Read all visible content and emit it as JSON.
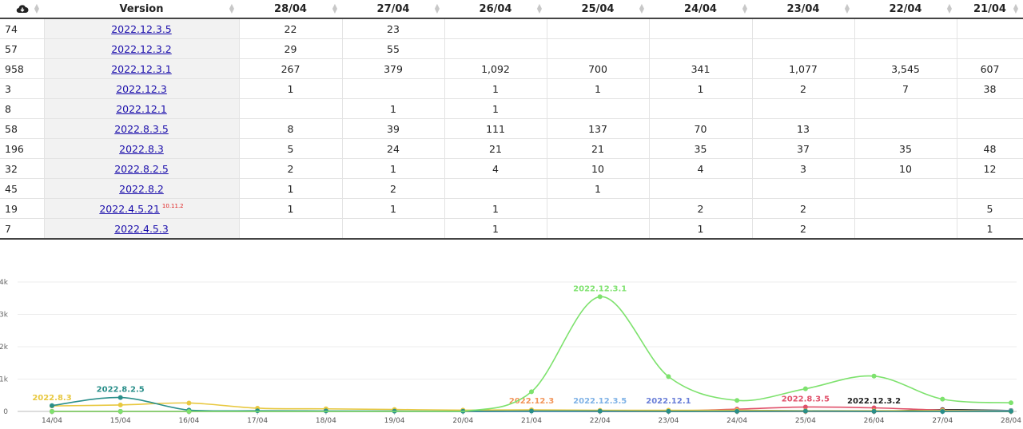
{
  "table": {
    "header_icon": "cloud-download-icon",
    "version_header": "Version",
    "date_headers": [
      "28/04",
      "27/04",
      "26/04",
      "25/04",
      "24/04",
      "23/04",
      "22/04",
      "21/04"
    ],
    "rows": [
      {
        "count": "74",
        "version": "2022.12.3.5",
        "badge": "",
        "cells": [
          "22",
          "23",
          "",
          "",
          "",
          "",
          "",
          ""
        ]
      },
      {
        "count": "57",
        "version": "2022.12.3.2",
        "badge": "",
        "cells": [
          "29",
          "55",
          "",
          "",
          "",
          "",
          "",
          ""
        ]
      },
      {
        "count": "958",
        "version": "2022.12.3.1",
        "badge": "",
        "cells": [
          "267",
          "379",
          "1,092",
          "700",
          "341",
          "1,077",
          "3,545",
          "607"
        ]
      },
      {
        "count": "3",
        "version": "2022.12.3",
        "badge": "",
        "cells": [
          "1",
          "",
          "1",
          "1",
          "1",
          "2",
          "7",
          "38"
        ]
      },
      {
        "count": "8",
        "version": "2022.12.1",
        "badge": "",
        "cells": [
          "",
          "1",
          "1",
          "",
          "",
          "",
          "",
          ""
        ]
      },
      {
        "count": "58",
        "version": "2022.8.3.5",
        "badge": "",
        "cells": [
          "8",
          "39",
          "111",
          "137",
          "70",
          "13",
          "",
          ""
        ]
      },
      {
        "count": "196",
        "version": "2022.8.3",
        "badge": "",
        "cells": [
          "5",
          "24",
          "21",
          "21",
          "35",
          "37",
          "35",
          "48"
        ]
      },
      {
        "count": "32",
        "version": "2022.8.2.5",
        "badge": "",
        "cells": [
          "2",
          "1",
          "4",
          "10",
          "4",
          "3",
          "10",
          "12"
        ]
      },
      {
        "count": "45",
        "version": "2022.8.2",
        "badge": "",
        "cells": [
          "1",
          "2",
          "",
          "1",
          "",
          "",
          "",
          ""
        ]
      },
      {
        "count": "19",
        "version": "2022.4.5.21",
        "badge": "10.11.2",
        "cells": [
          "1",
          "1",
          "1",
          "",
          "2",
          "2",
          "",
          "5"
        ]
      },
      {
        "count": "7",
        "version": "2022.4.5.3",
        "badge": "",
        "cells": [
          "",
          "",
          "1",
          "",
          "1",
          "2",
          "",
          "1"
        ]
      }
    ]
  },
  "chart_data": {
    "type": "line",
    "title": "",
    "xlabel": "",
    "ylabel": "",
    "x": [
      "14/04",
      "15/04",
      "16/04",
      "17/04",
      "18/04",
      "19/04",
      "20/04",
      "21/04",
      "22/04",
      "23/04",
      "24/04",
      "25/04",
      "26/04",
      "27/04",
      "28/04"
    ],
    "y_ticks": [
      "0",
      "1k",
      "2k",
      "3k",
      "4k"
    ],
    "ylim": [
      0,
      4000
    ],
    "grid": true,
    "series": [
      {
        "name": "2022.12.3.1",
        "color": "#7ee26e",
        "label_index": 8,
        "values": [
          0,
          0,
          0,
          0,
          0,
          0,
          0,
          607,
          3545,
          1077,
          341,
          700,
          1092,
          379,
          267
        ]
      },
      {
        "name": "2022.8.2.5",
        "color": "#2a8f8a",
        "label_index": 1,
        "values": [
          180,
          430,
          40,
          20,
          15,
          10,
          5,
          12,
          10,
          3,
          4,
          10,
          4,
          1,
          2
        ]
      },
      {
        "name": "2022.8.3",
        "color": "#e8c840",
        "label_index": 0,
        "values": [
          170,
          200,
          260,
          100,
          80,
          60,
          40,
          48,
          35,
          37,
          35,
          21,
          21,
          24,
          5
        ]
      },
      {
        "name": "2022.12.3",
        "color": "#f2955a",
        "label_index": 7,
        "values": [
          0,
          0,
          0,
          0,
          0,
          0,
          0,
          38,
          7,
          2,
          1,
          1,
          1,
          0,
          1
        ]
      },
      {
        "name": "2022.12.3.5",
        "color": "#7fb2e6",
        "label_index": 8,
        "values": [
          0,
          0,
          0,
          0,
          0,
          0,
          0,
          0,
          0,
          0,
          0,
          0,
          0,
          23,
          22
        ]
      },
      {
        "name": "2022.12.1",
        "color": "#6a7fd8",
        "label_index": 9,
        "values": [
          0,
          0,
          0,
          0,
          0,
          0,
          0,
          0,
          0,
          0,
          0,
          0,
          1,
          1,
          0
        ]
      },
      {
        "name": "2022.8.3.5",
        "color": "#e0506a",
        "label_index": 11,
        "values": [
          0,
          0,
          0,
          0,
          0,
          0,
          0,
          0,
          0,
          13,
          70,
          137,
          111,
          39,
          8
        ]
      },
      {
        "name": "2022.12.3.2",
        "color": "#222222",
        "label_index": 12,
        "values": [
          0,
          0,
          0,
          0,
          0,
          0,
          0,
          0,
          0,
          0,
          0,
          0,
          0,
          55,
          29
        ]
      }
    ]
  }
}
